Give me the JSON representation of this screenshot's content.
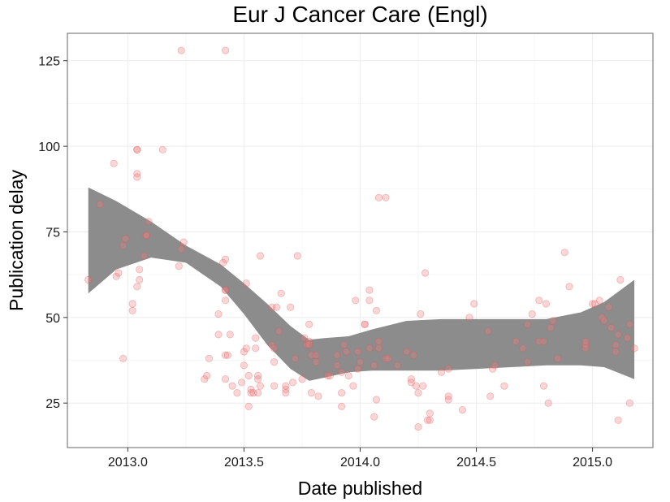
{
  "chart_data": {
    "type": "scatter",
    "title": "Eur J Cancer Care (Engl)",
    "xlabel": "Date published",
    "ylabel": "Publication delay",
    "xlim": [
      2012.74,
      2015.26
    ],
    "ylim": [
      12,
      133
    ],
    "x_ticks": [
      2013.0,
      2013.5,
      2014.0,
      2014.5,
      2015.0
    ],
    "x_tick_labels": [
      "2013.0",
      "2013.5",
      "2014.0",
      "2014.5",
      "2015.0"
    ],
    "y_ticks": [
      25,
      50,
      75,
      100,
      125
    ],
    "y_tick_labels": [
      "25",
      "50",
      "75",
      "100",
      "125"
    ],
    "grid": true,
    "point_color": "#f08080",
    "band_color": "#8c8c8c",
    "points": [
      [
        2012.83,
        61
      ],
      [
        2012.88,
        83
      ],
      [
        2012.94,
        95
      ],
      [
        2012.95,
        62
      ],
      [
        2012.96,
        63
      ],
      [
        2012.98,
        38
      ],
      [
        2012.98,
        71
      ],
      [
        2012.99,
        73
      ],
      [
        2013.02,
        52
      ],
      [
        2013.02,
        54
      ],
      [
        2013.04,
        99
      ],
      [
        2013.04,
        99
      ],
      [
        2013.04,
        92
      ],
      [
        2013.04,
        91
      ],
      [
        2013.04,
        59
      ],
      [
        2013.05,
        61
      ],
      [
        2013.05,
        64
      ],
      [
        2013.07,
        68
      ],
      [
        2013.08,
        74
      ],
      [
        2013.08,
        74
      ],
      [
        2013.09,
        78
      ],
      [
        2013.15,
        99
      ],
      [
        2013.22,
        65
      ],
      [
        2013.23,
        70
      ],
      [
        2013.24,
        72
      ],
      [
        2013.23,
        128
      ],
      [
        2013.33,
        32
      ],
      [
        2013.34,
        33
      ],
      [
        2013.35,
        38
      ],
      [
        2013.39,
        51
      ],
      [
        2013.39,
        45
      ],
      [
        2013.42,
        128
      ],
      [
        2013.41,
        66
      ],
      [
        2013.42,
        67
      ],
      [
        2013.42,
        58
      ],
      [
        2013.42,
        58
      ],
      [
        2013.42,
        55
      ],
      [
        2013.42,
        39
      ],
      [
        2013.43,
        39
      ],
      [
        2013.42,
        32
      ],
      [
        2013.44,
        45
      ],
      [
        2013.45,
        30
      ],
      [
        2013.47,
        28
      ],
      [
        2013.49,
        31
      ],
      [
        2013.5,
        36
      ],
      [
        2013.5,
        40
      ],
      [
        2013.51,
        41
      ],
      [
        2013.51,
        60
      ],
      [
        2013.52,
        33
      ],
      [
        2013.52,
        24
      ],
      [
        2013.53,
        29
      ],
      [
        2013.53,
        28
      ],
      [
        2013.54,
        28
      ],
      [
        2013.55,
        41
      ],
      [
        2013.55,
        44
      ],
      [
        2013.56,
        33
      ],
      [
        2013.56,
        32
      ],
      [
        2013.57,
        30
      ],
      [
        2013.56,
        28
      ],
      [
        2013.57,
        68
      ],
      [
        2013.62,
        53
      ],
      [
        2013.62,
        42
      ],
      [
        2013.63,
        30
      ],
      [
        2013.63,
        37
      ],
      [
        2013.63,
        41
      ],
      [
        2013.64,
        53
      ],
      [
        2013.65,
        46
      ],
      [
        2013.66,
        57
      ],
      [
        2013.68,
        28
      ],
      [
        2013.68,
        29
      ],
      [
        2013.68,
        30
      ],
      [
        2013.7,
        53
      ],
      [
        2013.71,
        31
      ],
      [
        2013.72,
        38
      ],
      [
        2013.73,
        68
      ],
      [
        2013.75,
        32
      ],
      [
        2013.76,
        44
      ],
      [
        2013.77,
        42
      ],
      [
        2013.78,
        43
      ],
      [
        2013.78,
        42
      ],
      [
        2013.78,
        48
      ],
      [
        2013.79,
        39
      ],
      [
        2013.79,
        28
      ],
      [
        2013.81,
        39
      ],
      [
        2013.81,
        37
      ],
      [
        2013.82,
        27
      ],
      [
        2013.86,
        33
      ],
      [
        2013.87,
        33
      ],
      [
        2013.9,
        36
      ],
      [
        2013.9,
        39
      ],
      [
        2013.92,
        24
      ],
      [
        2013.92,
        28
      ],
      [
        2013.92,
        34
      ],
      [
        2013.93,
        42
      ],
      [
        2013.94,
        40
      ],
      [
        2013.95,
        33
      ],
      [
        2013.97,
        30
      ],
      [
        2013.99,
        40
      ],
      [
        2013.98,
        55
      ],
      [
        2013.99,
        35
      ],
      [
        2014.0,
        37
      ],
      [
        2014.02,
        48
      ],
      [
        2014.02,
        48
      ],
      [
        2014.04,
        55
      ],
      [
        2014.04,
        58
      ],
      [
        2014.04,
        41
      ],
      [
        2014.06,
        36
      ],
      [
        2014.06,
        21
      ],
      [
        2014.07,
        52
      ],
      [
        2014.07,
        26
      ],
      [
        2014.08,
        43
      ],
      [
        2014.08,
        41
      ],
      [
        2014.08,
        85
      ],
      [
        2014.11,
        85
      ],
      [
        2014.11,
        38
      ],
      [
        2014.12,
        38
      ],
      [
        2014.16,
        36
      ],
      [
        2014.2,
        40
      ],
      [
        2014.22,
        31
      ],
      [
        2014.22,
        32
      ],
      [
        2014.23,
        39
      ],
      [
        2014.24,
        30
      ],
      [
        2014.25,
        18
      ],
      [
        2014.25,
        28
      ],
      [
        2014.26,
        51
      ],
      [
        2014.27,
        30
      ],
      [
        2014.28,
        63
      ],
      [
        2014.29,
        20
      ],
      [
        2014.3,
        20
      ],
      [
        2014.3,
        22
      ],
      [
        2014.35,
        34
      ],
      [
        2014.38,
        26
      ],
      [
        2014.38,
        27
      ],
      [
        2014.38,
        35
      ],
      [
        2014.44,
        23
      ],
      [
        2014.47,
        50
      ],
      [
        2014.49,
        54
      ],
      [
        2014.55,
        46
      ],
      [
        2014.56,
        27
      ],
      [
        2014.57,
        35
      ],
      [
        2014.58,
        36
      ],
      [
        2014.62,
        30
      ],
      [
        2014.67,
        43
      ],
      [
        2014.7,
        41
      ],
      [
        2014.72,
        37
      ],
      [
        2014.72,
        48
      ],
      [
        2014.74,
        51
      ],
      [
        2014.77,
        43
      ],
      [
        2014.77,
        55
      ],
      [
        2014.79,
        30
      ],
      [
        2014.79,
        43
      ],
      [
        2014.8,
        54
      ],
      [
        2014.81,
        25
      ],
      [
        2014.82,
        47
      ],
      [
        2014.83,
        49
      ],
      [
        2014.85,
        38
      ],
      [
        2014.88,
        69
      ],
      [
        2014.9,
        59
      ],
      [
        2014.97,
        41
      ],
      [
        2014.97,
        42
      ],
      [
        2014.97,
        43
      ],
      [
        2015.0,
        54
      ],
      [
        2015.01,
        54
      ],
      [
        2015.03,
        55
      ],
      [
        2015.04,
        50
      ],
      [
        2015.05,
        49
      ],
      [
        2015.07,
        53
      ],
      [
        2015.08,
        47
      ],
      [
        2015.1,
        40
      ],
      [
        2015.1,
        42
      ],
      [
        2015.11,
        20
      ],
      [
        2015.11,
        45
      ],
      [
        2015.12,
        61
      ],
      [
        2015.15,
        44
      ],
      [
        2015.16,
        48
      ],
      [
        2015.16,
        25
      ],
      [
        2015.18,
        41
      ]
    ],
    "smooth_fit": {
      "x": [
        2012.83,
        2012.95,
        2013.1,
        2013.25,
        2013.4,
        2013.5,
        2013.6,
        2013.7,
        2013.78,
        2013.85,
        2013.95,
        2014.05,
        2014.2,
        2014.35,
        2014.5,
        2014.65,
        2014.8,
        2014.95,
        2015.05,
        2015.18
      ],
      "lower": [
        57,
        64,
        67.5,
        66,
        59,
        51,
        42,
        35,
        31.5,
        32.5,
        34,
        34.5,
        34.5,
        34.5,
        35,
        35.5,
        36,
        36,
        35.5,
        32
      ],
      "upper": [
        88,
        84,
        78,
        71,
        65.5,
        60,
        54,
        47.5,
        43.5,
        44,
        44.5,
        46.5,
        49,
        49.5,
        49.5,
        49.5,
        49.5,
        51.5,
        54.5,
        61
      ]
    }
  }
}
